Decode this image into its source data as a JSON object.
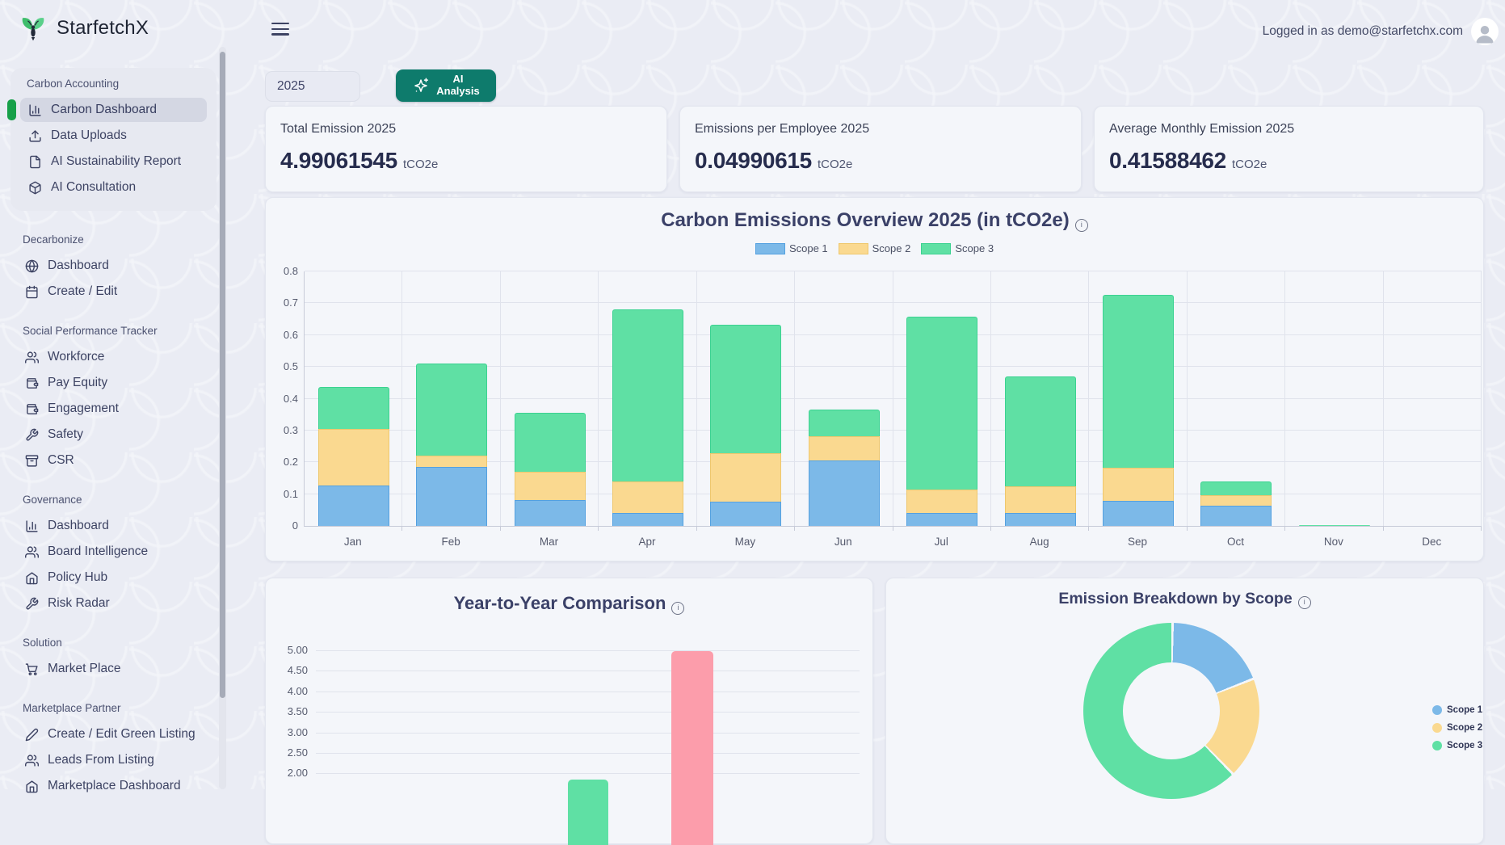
{
  "brand": {
    "name": "StarfetchX"
  },
  "header": {
    "logged_in_text": "Logged in as demo@starfetchx.com"
  },
  "controls": {
    "year": "2025",
    "ai_line1": "AI",
    "ai_line2": "Analysis"
  },
  "stats": [
    {
      "label": "Total Emission 2025",
      "value": "4.99061545",
      "unit": "tCO2e"
    },
    {
      "label": "Emissions per Employee 2025",
      "value": "0.04990615",
      "unit": "tCO2e"
    },
    {
      "label": "Average Monthly Emission 2025",
      "value": "0.41588462",
      "unit": "tCO2e"
    }
  ],
  "sidebar": {
    "groups": [
      {
        "label": "Carbon Accounting",
        "items": [
          {
            "label": "Carbon Dashboard",
            "icon": "bar-chart",
            "active": true
          },
          {
            "label": "Data Uploads",
            "icon": "upload"
          },
          {
            "label": "AI Sustainability Report",
            "icon": "file"
          },
          {
            "label": "AI Consultation",
            "icon": "cube"
          }
        ]
      },
      {
        "label": "Decarbonize",
        "items": [
          {
            "label": "Dashboard",
            "icon": "globe"
          },
          {
            "label": "Create / Edit",
            "icon": "calendar"
          }
        ]
      },
      {
        "label": "Social Performance Tracker",
        "items": [
          {
            "label": "Workforce",
            "icon": "users"
          },
          {
            "label": "Pay Equity",
            "icon": "wallet"
          },
          {
            "label": "Engagement",
            "icon": "wallet"
          },
          {
            "label": "Safety",
            "icon": "wrench"
          },
          {
            "label": "CSR",
            "icon": "archive"
          }
        ]
      },
      {
        "label": "Governance",
        "items": [
          {
            "label": "Dashboard",
            "icon": "bar-chart"
          },
          {
            "label": "Board Intelligence",
            "icon": "users"
          },
          {
            "label": "Policy Hub",
            "icon": "home"
          },
          {
            "label": "Risk Radar",
            "icon": "wrench"
          }
        ]
      },
      {
        "label": "Solution",
        "items": [
          {
            "label": "Market Place",
            "icon": "cart"
          }
        ]
      },
      {
        "label": "Marketplace Partner",
        "items": [
          {
            "label": "Create / Edit Green Listing",
            "icon": "pencil"
          },
          {
            "label": "Leads From Listing",
            "icon": "users"
          },
          {
            "label": "Marketplace Dashboard",
            "icon": "home"
          }
        ]
      }
    ]
  },
  "colors": {
    "scope1": "#7cb9e8",
    "scope1_border": "#54a1e0",
    "scope2": "#fad990",
    "scope2_border": "#eec76d",
    "scope3": "#5fe0a4",
    "scope3_border": "#3bd291",
    "yoy_green": "#5fe0a4",
    "yoy_pink": "#fc9dab",
    "teal_button": "#0e7b6c",
    "active_green": "#17a049",
    "card_bg": "#f4f6fa"
  },
  "chart_data": [
    {
      "type": "bar",
      "stacked": true,
      "title": "Carbon Emissions Overview 2025 (in tCO2e)",
      "categories": [
        "Jan",
        "Feb",
        "Mar",
        "Apr",
        "May",
        "Jun",
        "Jul",
        "Aug",
        "Sep",
        "Oct",
        "Nov",
        "Dec"
      ],
      "series": [
        {
          "name": "Scope 1",
          "color": "#7cb9e8",
          "border": "#54a1e0",
          "values": [
            0.128,
            0.185,
            0.081,
            0.041,
            0.076,
            0.206,
            0.041,
            0.041,
            0.08,
            0.064,
            0,
            0
          ]
        },
        {
          "name": "Scope 2",
          "color": "#fad990",
          "border": "#eec76d",
          "values": [
            0.177,
            0.037,
            0.089,
            0.098,
            0.154,
            0.077,
            0.073,
            0.084,
            0.103,
            0.033,
            0,
            0
          ]
        },
        {
          "name": "Scope 3",
          "color": "#5fe0a4",
          "border": "#3bd291",
          "values": [
            0.133,
            0.289,
            0.186,
            0.543,
            0.402,
            0.082,
            0.544,
            0.345,
            0.543,
            0.042,
            0.002,
            0
          ]
        }
      ],
      "ylim": [
        0,
        0.8
      ],
      "yticks": [
        "0",
        "0.1",
        "0.2",
        "0.3",
        "0.4",
        "0.5",
        "0.6",
        "0.7",
        "0.8"
      ],
      "grid": true,
      "legend_position": "top"
    },
    {
      "type": "bar",
      "title": "Year-to-Year Comparison",
      "categories": [
        "",
        ""
      ],
      "values": [
        1.85,
        4.99
      ],
      "bar_colors": [
        "#5fe0a4",
        "#fc9dab"
      ],
      "yticks_visible": [
        "5.00",
        "4.50",
        "4.00",
        "3.50",
        "3.00",
        "2.50",
        "2.00"
      ],
      "ylim_visible": [
        2.0,
        5.0
      ],
      "clipped_bottom": true
    },
    {
      "type": "pie",
      "donut": true,
      "title": "Emission Breakdown by Scope",
      "labels": [
        "Scope 1",
        "Scope 2",
        "Scope 3"
      ],
      "values": [
        0.94,
        0.93,
        3.12
      ],
      "colors": [
        "#7cb9e8",
        "#fad990",
        "#5fe0a4"
      ],
      "legend_position": "right",
      "clipped_bottom": true
    }
  ]
}
